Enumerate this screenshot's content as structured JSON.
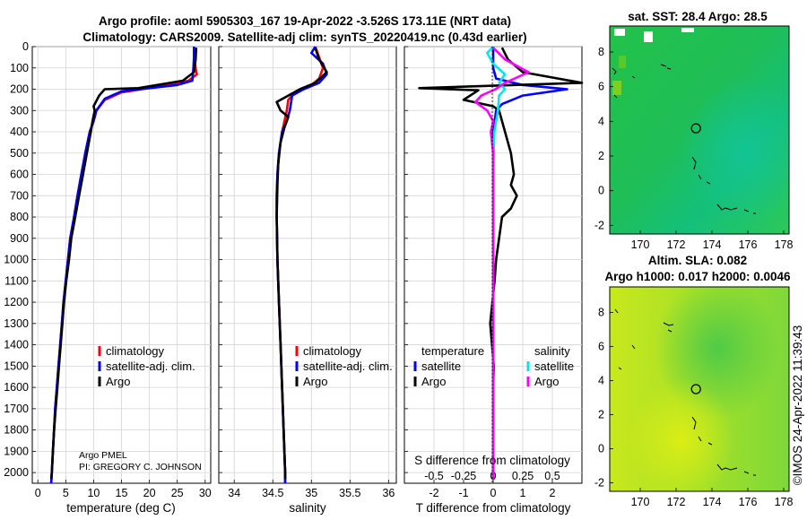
{
  "title_line1": "Argo profile: aoml 5905303_167 19-Apr-2022 -3.526S 173.11E (NRT data)",
  "title_line2": "Climatology: CARS2009. Satellite-adj clim: synTS_20220419.nc (0.43d earlier)",
  "sst_title": "sat. SST: 28.4 Argo: 28.5",
  "sla_title1": "Altim. SLA: 0.082",
  "sla_title2": "Argo h1000: 0.017 h2000: 0.0046",
  "side_label": "©IMOS 24-Apr-2022 11:39:43",
  "pi_line1": "Argo PMEL",
  "pi_line2": "PI: GREGORY C. JOHNSON",
  "colors": {
    "climatology": "#ff0000",
    "satellite": "#0000ff",
    "argo": "#000000",
    "sal_sat": "#00e5ee",
    "sal_argo": "#ff00ff"
  },
  "chart_data": [
    {
      "type": "line",
      "panel": "temperature",
      "xlabel": "temperature (deg C)",
      "xlim": [
        -1,
        31
      ],
      "xticks": [
        0,
        5,
        10,
        15,
        20,
        25,
        30
      ],
      "ylim": [
        2050,
        0
      ],
      "yticks": [
        0,
        100,
        200,
        300,
        400,
        500,
        600,
        700,
        800,
        900,
        1000,
        1100,
        1200,
        1300,
        1400,
        1500,
        1600,
        1700,
        1800,
        1900,
        2000
      ],
      "legend": [
        "climatology",
        "satellite-adj. clim.",
        "Argo"
      ],
      "series": [
        {
          "name": "climatology",
          "color": "#ff0000",
          "points": [
            [
              28,
              0
            ],
            [
              28,
              50
            ],
            [
              28.3,
              100
            ],
            [
              28.5,
              130
            ],
            [
              27,
              160
            ],
            [
              21,
              190
            ],
            [
              15,
              215
            ],
            [
              12,
              250
            ],
            [
              10.5,
              300
            ],
            [
              10,
              350
            ],
            [
              9.3,
              400
            ],
            [
              8.5,
              500
            ],
            [
              7.8,
              600
            ],
            [
              7.1,
              700
            ],
            [
              6.5,
              800
            ],
            [
              5.8,
              900
            ],
            [
              5.4,
              1000
            ],
            [
              5,
              1100
            ],
            [
              4.6,
              1200
            ],
            [
              4.3,
              1300
            ],
            [
              4,
              1400
            ],
            [
              3.7,
              1500
            ],
            [
              3.4,
              1600
            ],
            [
              3.1,
              1700
            ],
            [
              2.9,
              1800
            ],
            [
              2.7,
              1900
            ],
            [
              2.5,
              2000
            ],
            [
              2.4,
              2050
            ]
          ]
        },
        {
          "name": "satellite-adj. clim.",
          "color": "#0000ff",
          "points": [
            [
              28,
              0
            ],
            [
              28,
              50
            ],
            [
              27.9,
              100
            ],
            [
              27.7,
              160
            ],
            [
              25,
              180
            ],
            [
              20,
              195
            ],
            [
              15,
              210
            ],
            [
              12,
              245
            ],
            [
              10.5,
              300
            ],
            [
              10,
              350
            ],
            [
              9.3,
              400
            ],
            [
              8.5,
              500
            ],
            [
              7.8,
              600
            ],
            [
              7.1,
              700
            ],
            [
              6.5,
              800
            ],
            [
              5.8,
              900
            ],
            [
              5.4,
              1000
            ],
            [
              5,
              1100
            ],
            [
              4.6,
              1200
            ],
            [
              4.3,
              1300
            ],
            [
              4,
              1400
            ],
            [
              3.7,
              1500
            ],
            [
              3.4,
              1600
            ],
            [
              3.1,
              1700
            ],
            [
              2.9,
              1800
            ],
            [
              2.7,
              1900
            ],
            [
              2.5,
              2000
            ],
            [
              2.4,
              2050
            ]
          ]
        },
        {
          "name": "Argo",
          "color": "#000000",
          "points": [
            [
              28.4,
              5
            ],
            [
              28.3,
              60
            ],
            [
              28,
              120
            ],
            [
              26,
              160
            ],
            [
              18,
              195
            ],
            [
              12,
              200
            ],
            [
              11,
              230
            ],
            [
              10,
              280
            ],
            [
              10.2,
              300
            ],
            [
              9.8,
              350
            ],
            [
              9.5,
              400
            ],
            [
              8.8,
              500
            ],
            [
              8.1,
              600
            ],
            [
              7.4,
              700
            ],
            [
              6.7,
              800
            ],
            [
              6,
              900
            ],
            [
              5.6,
              1000
            ],
            [
              5.1,
              1100
            ],
            [
              4.7,
              1200
            ],
            [
              4.4,
              1300
            ],
            [
              4.1,
              1400
            ],
            [
              3.8,
              1500
            ],
            [
              3.5,
              1600
            ],
            [
              3.2,
              1700
            ],
            [
              2.9,
              1800
            ],
            [
              2.7,
              1900
            ],
            [
              2.5,
              2000
            ],
            [
              2.4,
              2030
            ]
          ]
        }
      ]
    },
    {
      "type": "line",
      "panel": "salinity",
      "xlabel": "salinity",
      "xlim": [
        33.8,
        36.1
      ],
      "xticks": [
        34,
        34.5,
        35,
        35.5,
        36
      ],
      "xtick_labels": [
        "34",
        "34.5",
        "35",
        "35.5",
        "36"
      ],
      "ylim": [
        2050,
        0
      ],
      "legend": [
        "climatology",
        "satellite-adj. clim.",
        "Argo"
      ],
      "series": [
        {
          "name": "climatology",
          "color": "#ff0000",
          "points": [
            [
              35.05,
              0
            ],
            [
              35.1,
              50
            ],
            [
              35.15,
              100
            ],
            [
              35.1,
              150
            ],
            [
              35,
              180
            ],
            [
              34.8,
              210
            ],
            [
              34.7,
              250
            ],
            [
              34.68,
              300
            ],
            [
              34.62,
              400
            ],
            [
              34.58,
              500
            ],
            [
              34.56,
              600
            ],
            [
              34.55,
              700
            ],
            [
              34.55,
              800
            ],
            [
              34.56,
              1000
            ],
            [
              34.58,
              1200
            ],
            [
              34.6,
              1400
            ],
            [
              34.62,
              1600
            ],
            [
              34.64,
              1800
            ],
            [
              34.66,
              2000
            ],
            [
              34.66,
              2050
            ]
          ]
        },
        {
          "name": "satellite-adj. clim.",
          "color": "#0000ff",
          "points": [
            [
              35.05,
              0
            ],
            [
              35,
              30
            ],
            [
              35.15,
              80
            ],
            [
              35.2,
              130
            ],
            [
              35.1,
              170
            ],
            [
              34.9,
              200
            ],
            [
              34.75,
              230
            ],
            [
              34.72,
              300
            ],
            [
              34.68,
              350
            ],
            [
              34.62,
              400
            ],
            [
              34.58,
              500
            ],
            [
              34.56,
              600
            ],
            [
              34.55,
              700
            ],
            [
              34.55,
              800
            ],
            [
              34.56,
              1000
            ],
            [
              34.58,
              1200
            ],
            [
              34.6,
              1400
            ],
            [
              34.62,
              1600
            ],
            [
              34.64,
              1800
            ],
            [
              34.66,
              2000
            ],
            [
              34.66,
              2050
            ]
          ]
        },
        {
          "name": "Argo",
          "color": "#000000",
          "points": [
            [
              35.05,
              5
            ],
            [
              35.1,
              60
            ],
            [
              35.2,
              120
            ],
            [
              35.05,
              170
            ],
            [
              34.85,
              200
            ],
            [
              34.7,
              230
            ],
            [
              34.55,
              260
            ],
            [
              34.6,
              300
            ],
            [
              34.7,
              330
            ],
            [
              34.65,
              380
            ],
            [
              34.6,
              450
            ],
            [
              34.57,
              550
            ],
            [
              34.56,
              650
            ],
            [
              34.55,
              800
            ],
            [
              34.56,
              1000
            ],
            [
              34.58,
              1200
            ],
            [
              34.6,
              1400
            ],
            [
              34.62,
              1600
            ],
            [
              34.64,
              1800
            ],
            [
              34.66,
              2000
            ],
            [
              34.66,
              2030
            ]
          ]
        }
      ]
    },
    {
      "type": "line",
      "panel": "difference",
      "xlabel": "T difference from climatology",
      "xlim": [
        -3,
        3
      ],
      "xticks": [
        -2,
        -1,
        0,
        1,
        2
      ],
      "top_axis_label": "S difference from climatology",
      "top_ticks": [
        -0.5,
        -0.25,
        0,
        0.25,
        0.5
      ],
      "top_tick_labels": [
        "-0.5",
        "-0.25",
        "0",
        "0.25",
        "0.5"
      ],
      "top_xlim": [
        -0.75,
        0.75
      ],
      "ylim": [
        2050,
        0
      ],
      "legend_titles": [
        "temperature",
        "salinity"
      ],
      "legend_temperature": [
        "satellite",
        "Argo"
      ],
      "legend_salinity": [
        "satellite",
        "Argo"
      ],
      "series": [
        {
          "name": "temperature satellite",
          "color": "#0000ff",
          "axis": "T",
          "points": [
            [
              0,
              0
            ],
            [
              0,
              100
            ],
            [
              0.1,
              150
            ],
            [
              1,
              180
            ],
            [
              2.5,
              200
            ],
            [
              1,
              230
            ],
            [
              0.3,
              270
            ],
            [
              0.1,
              300
            ],
            [
              0,
              400
            ],
            [
              0,
              2000
            ]
          ]
        },
        {
          "name": "temperature Argo",
          "color": "#000000",
          "axis": "T",
          "points": [
            [
              0.3,
              5
            ],
            [
              0.5,
              60
            ],
            [
              1,
              120
            ],
            [
              3,
              170
            ],
            [
              -2.5,
              195
            ],
            [
              -0.5,
              205
            ],
            [
              -1,
              250
            ],
            [
              0,
              280
            ],
            [
              0.2,
              300
            ],
            [
              0.4,
              400
            ],
            [
              0.6,
              500
            ],
            [
              0.7,
              600
            ],
            [
              0.6,
              650
            ],
            [
              0.8,
              700
            ],
            [
              0.6,
              760
            ],
            [
              0.3,
              800
            ],
            [
              0.2,
              900
            ],
            [
              0.1,
              1000
            ],
            [
              0.05,
              1100
            ],
            [
              -0.1,
              1300
            ],
            [
              0.02,
              1500
            ],
            [
              0,
              1600
            ],
            [
              0,
              2030
            ]
          ]
        },
        {
          "name": "salinity satellite",
          "color": "#00e5ee",
          "axis": "S",
          "points": [
            [
              0,
              0
            ],
            [
              -0.05,
              30
            ],
            [
              0,
              80
            ],
            [
              0.1,
              130
            ],
            [
              0.05,
              170
            ],
            [
              0.1,
              200
            ],
            [
              0.05,
              230
            ],
            [
              0.04,
              300
            ],
            [
              0.01,
              400
            ],
            [
              0,
              600
            ],
            [
              0,
              2000
            ]
          ]
        },
        {
          "name": "salinity Argo",
          "color": "#ff00ff",
          "axis": "S",
          "points": [
            [
              0,
              5
            ],
            [
              0.1,
              60
            ],
            [
              0.3,
              120
            ],
            [
              0.1,
              170
            ],
            [
              0.02,
              200
            ],
            [
              -0.1,
              230
            ],
            [
              -0.15,
              260
            ],
            [
              -0.05,
              300
            ],
            [
              0,
              350
            ],
            [
              -0.02,
              400
            ],
            [
              0,
              500
            ],
            [
              0,
              700
            ],
            [
              0,
              1000
            ],
            [
              0,
              1500
            ],
            [
              0,
              2030
            ]
          ]
        }
      ]
    },
    {
      "type": "heatmap",
      "panel": "sst_map",
      "title": "sat. SST: 28.4 Argo: 28.5",
      "xlim": [
        168.3,
        178.3
      ],
      "ylim": [
        -2.5,
        9.5
      ],
      "xticks": [
        170,
        172,
        174,
        176,
        178
      ],
      "yticks": [
        -2,
        0,
        2,
        4,
        6,
        8
      ],
      "marker": [
        173.11,
        3.6
      ]
    },
    {
      "type": "heatmap",
      "panel": "sla_map",
      "title": "Altim. SLA: 0.082 / Argo h1000: 0.017 h2000: 0.0046",
      "xlim": [
        168.3,
        178.3
      ],
      "ylim": [
        -2.5,
        9.5
      ],
      "xticks": [
        170,
        172,
        174,
        176,
        178
      ],
      "yticks": [
        -2,
        0,
        2,
        4,
        6,
        8
      ],
      "marker": [
        173.11,
        3.5
      ]
    }
  ]
}
